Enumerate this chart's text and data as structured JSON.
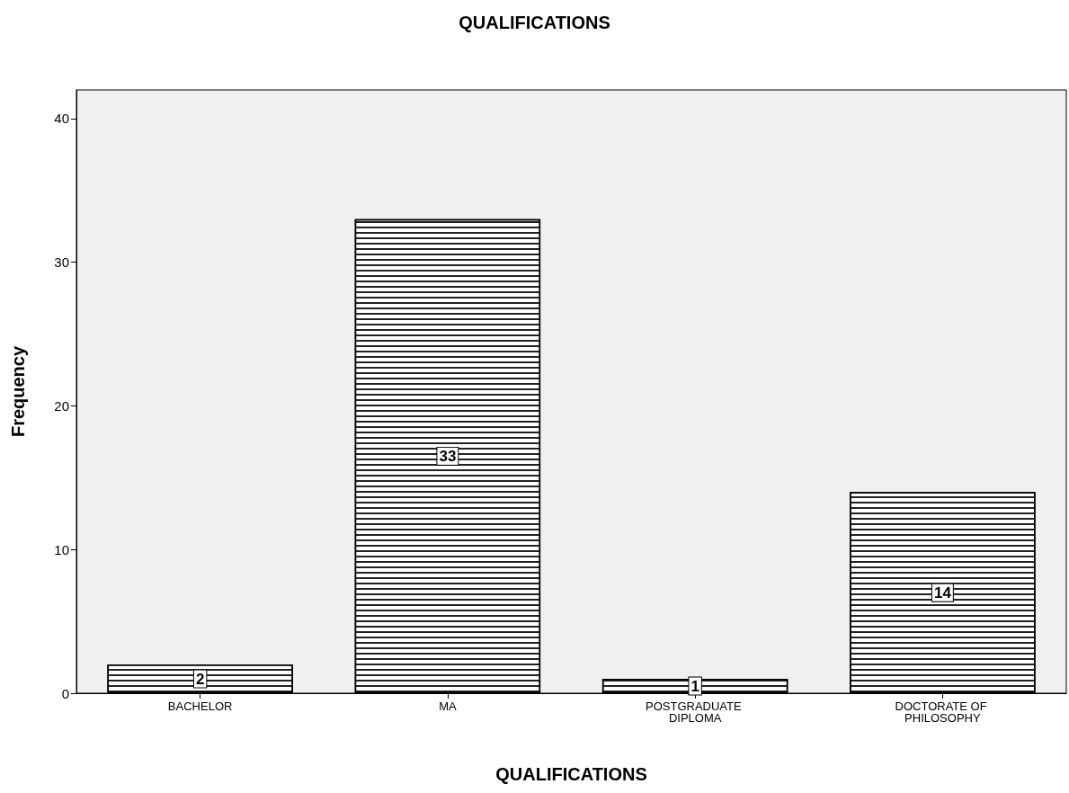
{
  "chart_data": {
    "type": "bar",
    "title": "QUALIFICATIONS",
    "xlabel": "QUALIFICATIONS",
    "ylabel": "Frequency",
    "categories": [
      "BACHELOR",
      "MA",
      "POSTGRADUATE DIPLOMA",
      "DOCTORATE OF PHILOSOPHY"
    ],
    "values": [
      2,
      33,
      1,
      14
    ],
    "color": "#ffffff",
    "ylim": [
      0,
      42
    ],
    "yticks": [
      0,
      10,
      20,
      30,
      40
    ],
    "grid": false,
    "data_labels": true
  }
}
